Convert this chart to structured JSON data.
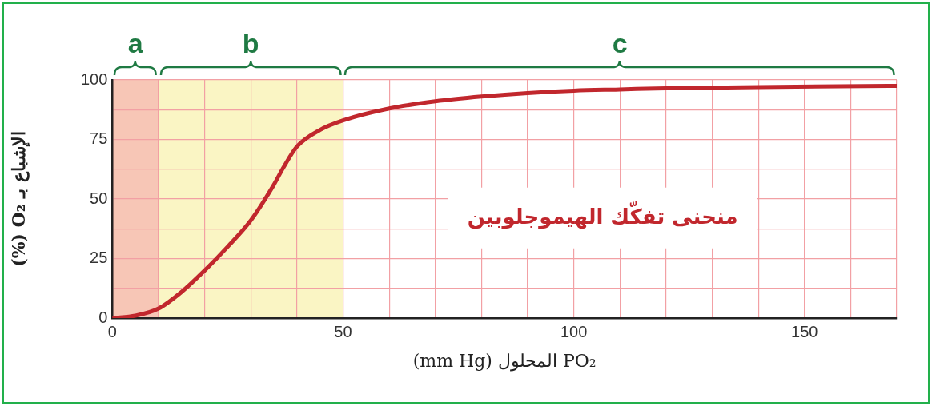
{
  "chart_data": {
    "type": "line",
    "xlabel": "PO₂ المحلول (mm Hg)",
    "ylabel": "الإشباع بـ O₂ (%)",
    "x": [
      0,
      5,
      10,
      15,
      20,
      25,
      30,
      35,
      37,
      40,
      45,
      50,
      60,
      70,
      80,
      90,
      100,
      110,
      120,
      140,
      170
    ],
    "series": [
      {
        "name": "منحنى تفكّك الهيموجلوبين",
        "color": "#c1272d",
        "values": [
          0,
          1,
          4,
          11,
          20,
          30,
          41,
          56,
          63,
          72,
          79,
          83,
          88,
          91,
          93,
          94.5,
          95.5,
          96,
          96.5,
          97,
          97.5
        ]
      }
    ],
    "xlim": [
      0,
      170
    ],
    "xticks": [
      0,
      {
        "value": 10,
        "label": null
      },
      {
        "value": 20,
        "label": null
      },
      {
        "value": 30,
        "label": null
      },
      {
        "value": 40,
        "label": null
      },
      50,
      {
        "value": 60,
        "label": null
      },
      {
        "value": 70,
        "label": null
      },
      {
        "value": 80,
        "label": null
      },
      {
        "value": 90,
        "label": null
      },
      100,
      {
        "value": 110,
        "label": null
      },
      {
        "value": 120,
        "label": null
      },
      {
        "value": 130,
        "label": null
      },
      {
        "value": 140,
        "label": null
      },
      150,
      {
        "value": 160,
        "label": null
      },
      {
        "value": 170,
        "label": null
      }
    ],
    "ylim": [
      0,
      100
    ],
    "yticks": [
      0,
      {
        "value": 12.5,
        "label": null
      },
      25,
      {
        "value": 37.5,
        "label": null
      },
      50,
      {
        "value": 62.5,
        "label": null
      },
      75,
      {
        "value": 87.5,
        "label": null
      },
      100
    ],
    "grid": true,
    "bands": [
      {
        "axis": "x",
        "from": 0,
        "to": 10,
        "label": "a",
        "color": "#f7c6b6"
      },
      {
        "axis": "x",
        "from": 10,
        "to": 50,
        "label": "b",
        "color": "#faf5c4"
      }
    ],
    "annotations": [
      "c"
    ]
  }
}
